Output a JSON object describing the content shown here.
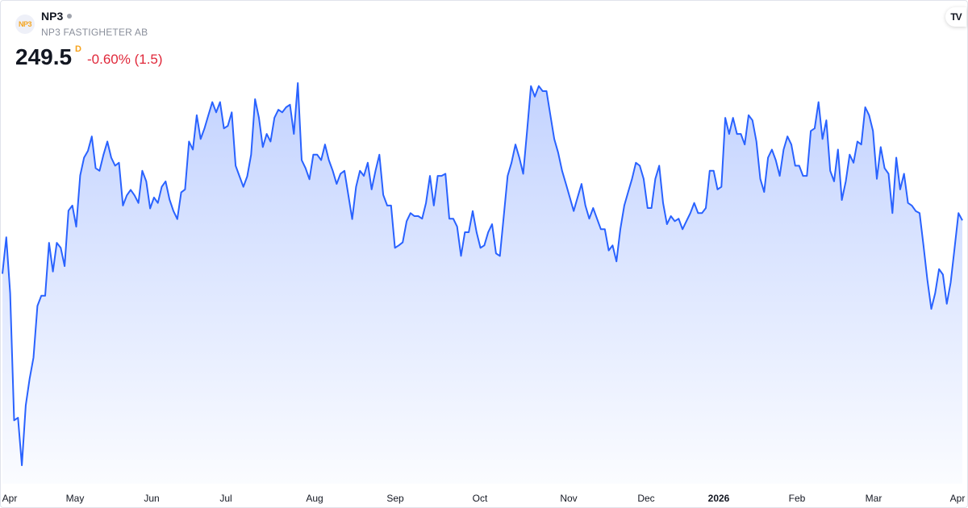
{
  "header": {
    "logo_text": "NP3",
    "ticker": "NP3",
    "company": "NP3 FASTIGHETER AB",
    "price": "249.5",
    "interval": "D",
    "change": "-0.60% (1.5)",
    "change_color": "#e0283a",
    "brand_logo": "TV"
  },
  "chart_data": {
    "type": "area",
    "title": "",
    "xlabel": "",
    "ylabel": "",
    "line_color": "#2962ff",
    "fill_color": "#2962ff",
    "grid": false,
    "y_axis_shown": false,
    "x_tick_labels": [
      {
        "label": "Apr",
        "bold": false
      },
      {
        "label": "May",
        "bold": false
      },
      {
        "label": "Jun",
        "bold": false
      },
      {
        "label": "Jul",
        "bold": false
      },
      {
        "label": "Aug",
        "bold": false
      },
      {
        "label": "Sep",
        "bold": false
      },
      {
        "label": "Oct",
        "bold": false
      },
      {
        "label": "Nov",
        "bold": false
      },
      {
        "label": "Dec",
        "bold": false
      },
      {
        "label": "2026",
        "bold": true
      },
      {
        "label": "Feb",
        "bold": false
      },
      {
        "label": "Mar",
        "bold": false
      },
      {
        "label": "Apr",
        "bold": false
      }
    ],
    "values": [
      236.9,
      245.5,
      232.3,
      202.3,
      202.9,
      191.7,
      205.8,
      212.1,
      217.1,
      229.3,
      231.7,
      231.7,
      244.2,
      237.4,
      244.2,
      243.0,
      238.7,
      251.8,
      253.0,
      248.0,
      260.1,
      264.3,
      265.9,
      269.3,
      261.8,
      261.2,
      265.0,
      268.1,
      264.3,
      262.4,
      263.1,
      253.0,
      255.4,
      256.7,
      255.4,
      253.6,
      261.2,
      258.7,
      252.3,
      254.9,
      253.6,
      257.4,
      258.7,
      254.4,
      251.7,
      249.8,
      256.1,
      256.8,
      268.1,
      266.2,
      274.3,
      268.7,
      271.2,
      274.3,
      277.4,
      275.0,
      277.4,
      271.2,
      271.8,
      275.0,
      262.4,
      259.9,
      257.4,
      259.9,
      265.0,
      278.1,
      273.7,
      266.8,
      269.9,
      268.1,
      273.7,
      275.6,
      275.0,
      276.2,
      276.8,
      269.9,
      281.9,
      263.7,
      261.8,
      259.2,
      265.0,
      265.0,
      263.7,
      267.4,
      263.7,
      261.2,
      258.1,
      260.5,
      261.2,
      255.5,
      249.8,
      257.4,
      261.2,
      260.0,
      263.1,
      256.8,
      261.2,
      265.0,
      255.5,
      253.0,
      253.0,
      243.0,
      243.6,
      244.3,
      249.3,
      251.2,
      250.5,
      250.5,
      249.9,
      253.6,
      260.0,
      253.0,
      260.0,
      260.0,
      260.5,
      249.9,
      249.9,
      248.0,
      241.1,
      246.7,
      246.7,
      251.7,
      246.7,
      243.0,
      243.6,
      246.7,
      248.6,
      241.7,
      241.1,
      250.5,
      260.0,
      263.1,
      267.4,
      264.3,
      260.5,
      270.6,
      281.2,
      278.7,
      281.2,
      280.0,
      280.0,
      274.3,
      268.7,
      265.5,
      261.2,
      258.1,
      254.9,
      251.7,
      254.9,
      258.1,
      253.0,
      249.9,
      252.4,
      249.9,
      247.4,
      247.4,
      242.4,
      243.6,
      239.8,
      247.4,
      253.0,
      256.2,
      259.3,
      263.1,
      262.4,
      259.3,
      252.4,
      252.4,
      259.3,
      262.4,
      253.6,
      248.6,
      250.5,
      249.3,
      249.9,
      247.4,
      249.3,
      251.2,
      253.6,
      251.2,
      251.2,
      252.4,
      261.2,
      261.2,
      256.8,
      257.4,
      273.7,
      269.9,
      273.7,
      269.9,
      269.9,
      267.4,
      274.3,
      273.1,
      268.1,
      259.3,
      256.2,
      264.3,
      266.2,
      263.7,
      260.0,
      266.2,
      269.3,
      267.4,
      262.4,
      262.4,
      260.0,
      260.0,
      270.6,
      271.2,
      277.4,
      268.7,
      273.1,
      261.2,
      258.7,
      266.2,
      254.3,
      258.7,
      265.0,
      263.1,
      268.1,
      267.4,
      276.2,
      274.3,
      270.6,
      259.3,
      266.8,
      261.8,
      260.5,
      251.2,
      264.3,
      256.8,
      260.5,
      253.6,
      253.0,
      251.7,
      251.2,
      243.6,
      235.5,
      228.6,
      232.3,
      238.0,
      236.7,
      229.8,
      234.8,
      243.0,
      251.2,
      249.5
    ]
  }
}
